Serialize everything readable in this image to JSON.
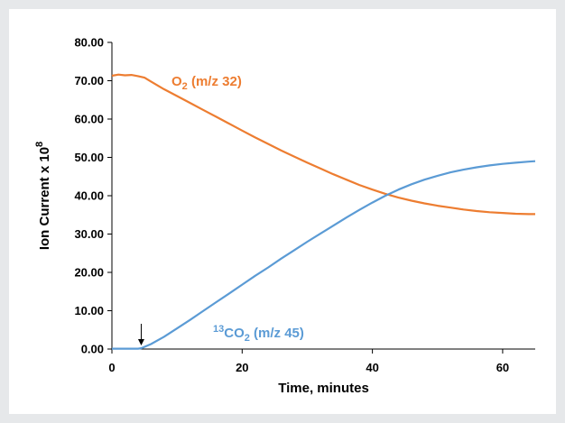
{
  "chart_data": {
    "type": "line",
    "xlabel": "Time, minutes",
    "ylabel_base": "Ion Current x 10",
    "ylabel_exp": "8",
    "xlim": [
      0,
      65
    ],
    "ylim": [
      0,
      80
    ],
    "x_ticks": [
      "0",
      "20",
      "40",
      "60"
    ],
    "x_tick_values": [
      0,
      20,
      40,
      60
    ],
    "y_ticks": [
      "0.00",
      "10.00",
      "20.00",
      "30.00",
      "40.00",
      "50.00",
      "60.00",
      "70.00",
      "80.00"
    ],
    "y_tick_values": [
      0,
      10,
      20,
      30,
      40,
      50,
      60,
      70,
      80
    ],
    "grid": false,
    "series": [
      {
        "label_main": "O",
        "label_sub": "2",
        "label_rest": " (m/z 32)",
        "color": "#ED7D31",
        "x": [
          0,
          1,
          2,
          3,
          4,
          5,
          6,
          8,
          10,
          12,
          14,
          16,
          18,
          20,
          22,
          24,
          26,
          28,
          30,
          32,
          34,
          36,
          38,
          40,
          42,
          44,
          46,
          48,
          50,
          52,
          54,
          56,
          58,
          60,
          62,
          64,
          65
        ],
        "y": [
          71.3,
          71.6,
          71.4,
          71.5,
          71.2,
          70.8,
          69.8,
          67.8,
          66.0,
          64.2,
          62.4,
          60.6,
          58.8,
          57.0,
          55.2,
          53.5,
          51.8,
          50.2,
          48.6,
          47.1,
          45.6,
          44.2,
          42.8,
          41.6,
          40.5,
          39.5,
          38.7,
          38.0,
          37.4,
          36.9,
          36.4,
          36.0,
          35.7,
          35.5,
          35.3,
          35.2,
          35.2
        ]
      },
      {
        "label_sup": "13",
        "label_main": "CO",
        "label_sub": "2",
        "label_rest": " (m/z 45)",
        "color": "#5B9BD5",
        "x": [
          0,
          2,
          4,
          4.5,
          6,
          8,
          10,
          12,
          14,
          16,
          18,
          20,
          22,
          24,
          26,
          28,
          30,
          32,
          34,
          36,
          38,
          40,
          42,
          44,
          46,
          48,
          50,
          52,
          54,
          56,
          58,
          60,
          62,
          64,
          65
        ],
        "y": [
          0.1,
          0.1,
          0.1,
          0.2,
          1.3,
          3.2,
          5.4,
          7.6,
          9.9,
          12.2,
          14.5,
          16.8,
          19.1,
          21.3,
          23.6,
          25.8,
          28.0,
          30.1,
          32.2,
          34.3,
          36.3,
          38.2,
          40.0,
          41.6,
          43.0,
          44.2,
          45.2,
          46.1,
          46.8,
          47.4,
          47.9,
          48.3,
          48.6,
          48.9,
          49.0
        ]
      }
    ],
    "annotation_arrow_x": 4.5
  }
}
